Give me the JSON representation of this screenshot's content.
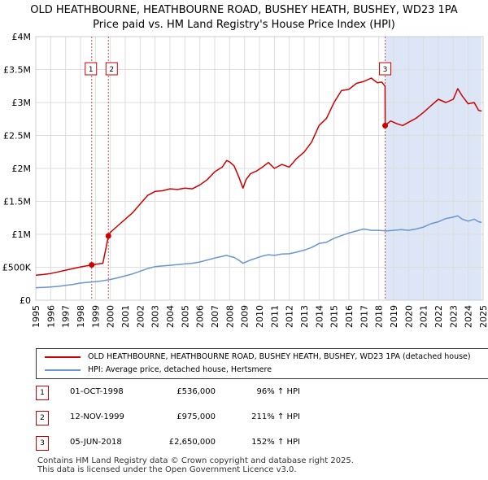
{
  "title": {
    "line1": "OLD HEATHBOURNE, HEATHBOURNE ROAD, BUSHEY HEATH, BUSHEY, WD23 1PA",
    "line2": "Price paid vs. HM Land Registry's House Price Index (HPI)"
  },
  "colors": {
    "price_line": "#cc0000",
    "hpi_line": "#6b95cf",
    "shade": "#dde6f7",
    "grid": "#dddddd"
  },
  "legend": {
    "price_label": "OLD HEATHBOURNE, HEATHBOURNE ROAD, BUSHEY HEATH, BUSHEY, WD23 1PA (detached house)",
    "hpi_label": "HPI: Average price, detached house, Hertsmere"
  },
  "sales": [
    {
      "num": "1",
      "date": "01-OCT-1998",
      "price": "£536,000",
      "hpi": "96% ↑ HPI"
    },
    {
      "num": "2",
      "date": "12-NOV-1999",
      "price": "£975,000",
      "hpi": "211% ↑ HPI"
    },
    {
      "num": "3",
      "date": "05-JUN-2018",
      "price": "£2,650,000",
      "hpi": "152% ↑ HPI"
    }
  ],
  "footer": {
    "line1": "Contains HM Land Registry data © Crown copyright and database right 2025.",
    "line2": "This data is licensed under the Open Government Licence v3.0."
  },
  "chart_data": {
    "type": "line",
    "title": "Price paid vs. HM Land Registry's House Price Index (HPI)",
    "xlim": [
      1995,
      2025
    ],
    "ylim": [
      0,
      4000000
    ],
    "y_ticks": [
      {
        "value": 0,
        "label": "£0"
      },
      {
        "value": 500000,
        "label": "£500K"
      },
      {
        "value": 1000000,
        "label": "£1M"
      },
      {
        "value": 1500000,
        "label": "£1.5M"
      },
      {
        "value": 2000000,
        "label": "£2M"
      },
      {
        "value": 2500000,
        "label": "£2.5M"
      },
      {
        "value": 3000000,
        "label": "£3M"
      },
      {
        "value": 3500000,
        "label": "£3.5M"
      },
      {
        "value": 4000000,
        "label": "£4M"
      }
    ],
    "x_ticks": [
      "1995",
      "1996",
      "1997",
      "1998",
      "1999",
      "2000",
      "2001",
      "2002",
      "2003",
      "2004",
      "2005",
      "2006",
      "2007",
      "2008",
      "2009",
      "2010",
      "2011",
      "2012",
      "2013",
      "2014",
      "2015",
      "2016",
      "2017",
      "2018",
      "2019",
      "2020",
      "2021",
      "2022",
      "2023",
      "2024",
      "2025"
    ],
    "shaded_ranges": [
      [
        2018.43,
        2024.9
      ]
    ],
    "sale_markers": [
      {
        "label": "1",
        "x": 1998.75,
        "y": 536000
      },
      {
        "label": "2",
        "x": 1999.87,
        "y": 975000
      },
      {
        "label": "3",
        "x": 2018.43,
        "y": 2650000
      }
    ],
    "series": [
      {
        "name": "OLD HEATHBOURNE, HEATHBOURNE ROAD, BUSHEY HEATH, BUSHEY, WD23 1PA (detached house)",
        "x": [
          1995.0,
          1995.5,
          1996.0,
          1996.5,
          1997.0,
          1997.5,
          1998.0,
          1998.5,
          1998.75,
          1999.0,
          1999.5,
          1999.87,
          2000.0,
          2000.5,
          2001.0,
          2001.5,
          2002.0,
          2002.5,
          2003.0,
          2003.5,
          2004.0,
          2004.5,
          2005.0,
          2005.5,
          2006.0,
          2006.5,
          2007.0,
          2007.5,
          2007.8,
          2008.0,
          2008.3,
          2008.6,
          2008.9,
          2009.1,
          2009.4,
          2009.8,
          2010.2,
          2010.6,
          2011.0,
          2011.5,
          2012.0,
          2012.5,
          2013.0,
          2013.5,
          2014.0,
          2014.5,
          2015.0,
          2015.5,
          2016.0,
          2016.5,
          2017.0,
          2017.5,
          2017.9,
          2018.2,
          2018.42,
          2018.43,
          2018.8,
          2019.2,
          2019.6,
          2020.0,
          2020.5,
          2021.0,
          2021.5,
          2022.0,
          2022.5,
          2023.0,
          2023.3,
          2023.6,
          2024.0,
          2024.4,
          2024.7,
          2024.9
        ],
        "values": [
          380000,
          390000,
          405000,
          430000,
          455000,
          480000,
          505000,
          525000,
          536000,
          545000,
          560000,
          975000,
          1030000,
          1130000,
          1230000,
          1330000,
          1460000,
          1590000,
          1650000,
          1660000,
          1690000,
          1680000,
          1700000,
          1690000,
          1750000,
          1830000,
          1950000,
          2020000,
          2120000,
          2100000,
          2040000,
          1880000,
          1700000,
          1830000,
          1920000,
          1960000,
          2020000,
          2090000,
          2000000,
          2060000,
          2020000,
          2150000,
          2250000,
          2400000,
          2650000,
          2760000,
          3000000,
          3180000,
          3200000,
          3290000,
          3320000,
          3370000,
          3300000,
          3310000,
          3250000,
          2650000,
          2720000,
          2680000,
          2650000,
          2700000,
          2760000,
          2850000,
          2950000,
          3050000,
          3000000,
          3050000,
          3210000,
          3100000,
          2980000,
          3000000,
          2880000,
          2870000
        ]
      },
      {
        "name": "HPI: Average price, detached house, Hertsmere",
        "x": [
          1995.0,
          1995.5,
          1996.0,
          1996.5,
          1997.0,
          1997.5,
          1998.0,
          1998.5,
          1999.0,
          1999.5,
          2000.0,
          2000.5,
          2001.0,
          2001.5,
          2002.0,
          2002.5,
          2003.0,
          2003.5,
          2004.0,
          2004.5,
          2005.0,
          2005.5,
          2006.0,
          2006.5,
          2007.0,
          2007.5,
          2007.8,
          2008.0,
          2008.3,
          2008.6,
          2008.9,
          2009.1,
          2009.4,
          2009.8,
          2010.2,
          2010.6,
          2011.0,
          2011.5,
          2012.0,
          2012.5,
          2013.0,
          2013.5,
          2014.0,
          2014.5,
          2015.0,
          2015.5,
          2016.0,
          2016.5,
          2017.0,
          2017.5,
          2018.0,
          2018.5,
          2019.0,
          2019.5,
          2020.0,
          2020.5,
          2021.0,
          2021.5,
          2022.0,
          2022.5,
          2023.0,
          2023.3,
          2023.6,
          2024.0,
          2024.4,
          2024.7,
          2024.9
        ],
        "values": [
          190000,
          195000,
          200000,
          210000,
          225000,
          240000,
          260000,
          272000,
          280000,
          295000,
          315000,
          340000,
          370000,
          400000,
          440000,
          480000,
          510000,
          520000,
          530000,
          540000,
          550000,
          560000,
          580000,
          610000,
          640000,
          665000,
          680000,
          665000,
          650000,
          610000,
          560000,
          580000,
          610000,
          640000,
          670000,
          690000,
          680000,
          700000,
          705000,
          730000,
          760000,
          800000,
          860000,
          880000,
          940000,
          980000,
          1020000,
          1050000,
          1080000,
          1060000,
          1060000,
          1050000,
          1060000,
          1070000,
          1060000,
          1080000,
          1110000,
          1160000,
          1190000,
          1240000,
          1260000,
          1280000,
          1230000,
          1200000,
          1230000,
          1190000,
          1180000
        ]
      }
    ]
  }
}
